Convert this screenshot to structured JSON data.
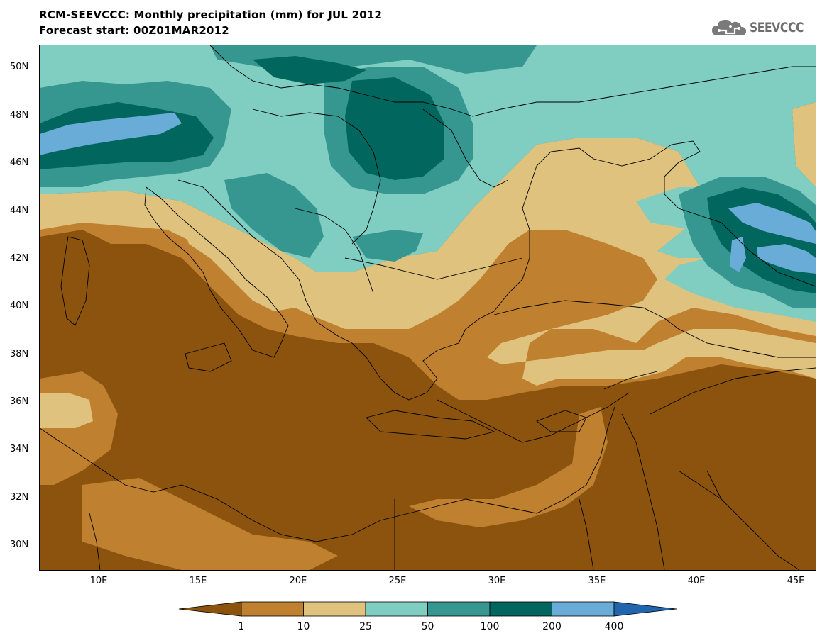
{
  "header": {
    "title": "RCM-SEEVCCC: Monthly precipitation (mm) for JUL 2012",
    "subtitle": "Forecast start: 00Z01MAR2012"
  },
  "logo": {
    "text": "SEEVCCC",
    "icon": "cloud-logo-icon"
  },
  "map": {
    "lon_range": [
      7,
      46
    ],
    "lat_range": [
      29,
      51
    ],
    "background_color": "#8b530e"
  },
  "axes": {
    "y_ticks": [
      "50N",
      "48N",
      "46N",
      "44N",
      "42N",
      "40N",
      "38N",
      "36N",
      "34N",
      "32N",
      "30N"
    ],
    "x_ticks": [
      "10E",
      "15E",
      "20E",
      "25E",
      "30E",
      "35E",
      "40E",
      "45E"
    ]
  },
  "legend": {
    "labels": [
      "1",
      "10",
      "25",
      "50",
      "100",
      "200",
      "400"
    ],
    "colors": [
      "#8b530e",
      "#bf8030",
      "#dfc27d",
      "#80cdc1",
      "#35978f",
      "#01665e",
      "#6aacd8",
      "#2166ac"
    ]
  }
}
